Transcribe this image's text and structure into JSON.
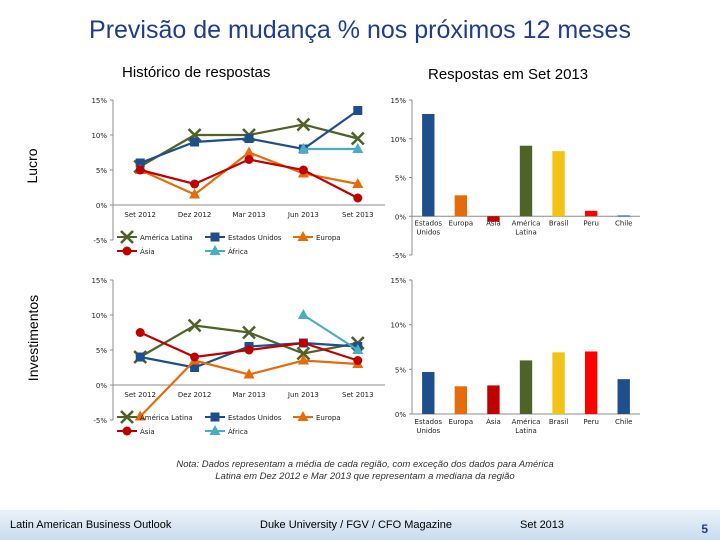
{
  "slide": {
    "title": "Previsão de mudança % nos próximos 12 meses",
    "left_header": "Histórico de respostas",
    "right_header": "Respostas em Set 2013",
    "row_top_label": "Lucro",
    "row_bottom_label": "Investimentos",
    "note": "Nota: Dados representam a média de cada região, com exceção dos dados para América Latina em Dez 2012 e Mar 2013 que representam a mediana da região",
    "footer_left": "Latin American Business Outlook",
    "footer_mid": "Duke University / FGV / CFO Magazine",
    "footer_right": "Set 2013",
    "page_number": "5"
  },
  "colors": {
    "america_latina": "#4f6228",
    "estados_unidos": "#1f4e8c",
    "europa": "#e46c0a",
    "asia": "#c00000",
    "africa": "#4bacc6",
    "brasil": "#f2c314",
    "peru": "#ff0000",
    "chile": "#1f4e8c"
  },
  "chart_data": [
    {
      "id": "lucro-historico",
      "type": "line",
      "title": "",
      "categories": [
        "Set 2012",
        "Dez 2012",
        "Mar 2013",
        "Jun 2013",
        "Set 2013"
      ],
      "ylim": [
        -5,
        15
      ],
      "yticks": [
        "-5%",
        "0%",
        "5%",
        "10%",
        "15%"
      ],
      "ytick_values": [
        -5,
        0,
        5,
        10,
        15
      ],
      "series": [
        {
          "name": "América Latina",
          "key": "america_latina",
          "marker": "x",
          "values": [
            5.5,
            10,
            10,
            11.5,
            9.5
          ]
        },
        {
          "name": "Estados Unidos",
          "key": "estados_unidos",
          "marker": "square",
          "values": [
            6,
            9,
            9.5,
            8,
            13.5
          ]
        },
        {
          "name": "Europa",
          "key": "europa",
          "marker": "triangle",
          "values": [
            5,
            1.5,
            7.5,
            4.5,
            3
          ]
        },
        {
          "name": "Ásia",
          "key": "asia",
          "marker": "circle",
          "values": [
            5,
            3,
            6.5,
            5,
            1
          ]
        },
        {
          "name": "África",
          "key": "africa",
          "marker": "triangle",
          "values": [
            null,
            null,
            null,
            8,
            8
          ]
        }
      ]
    },
    {
      "id": "lucro-set2013",
      "type": "bar",
      "categories": [
        "Estados Unidos",
        "Europa",
        "Ásia",
        "América Latina",
        "Brasil",
        "Peru",
        "Chile"
      ],
      "keys": [
        "estados_unidos",
        "europa",
        "asia",
        "america_latina",
        "brasil",
        "peru",
        "chile"
      ],
      "values": [
        13.2,
        2.7,
        -0.7,
        9.1,
        8.4,
        0.7,
        0.1
      ],
      "ylim": [
        -5,
        15
      ],
      "yticks": [
        "-5%",
        "0%",
        "5%",
        "10%",
        "15%"
      ],
      "ytick_values": [
        -5,
        0,
        5,
        10,
        15
      ]
    },
    {
      "id": "investimentos-historico",
      "type": "line",
      "categories": [
        "Set 2012",
        "Dez 2012",
        "Mar 2013",
        "Jun 2013",
        "Set 2013"
      ],
      "ylim": [
        -5,
        15
      ],
      "yticks": [
        "-5%",
        "0%",
        "5%",
        "10%",
        "15%"
      ],
      "ytick_values": [
        -5,
        0,
        5,
        10,
        15
      ],
      "series": [
        {
          "name": "América Latina",
          "key": "america_latina",
          "marker": "x",
          "values": [
            4,
            8.5,
            7.5,
            4.5,
            6
          ]
        },
        {
          "name": "Estados Unidos",
          "key": "estados_unidos",
          "marker": "square",
          "values": [
            4,
            2.5,
            5.5,
            6,
            5.5
          ]
        },
        {
          "name": "Europa",
          "key": "europa",
          "marker": "triangle",
          "values": [
            -4.5,
            3.5,
            1.5,
            3.5,
            3
          ]
        },
        {
          "name": "Ásia",
          "key": "asia",
          "marker": "circle",
          "values": [
            7.5,
            4,
            5,
            6,
            3.5
          ]
        },
        {
          "name": "África",
          "key": "africa",
          "marker": "triangle",
          "values": [
            null,
            null,
            null,
            10,
            5
          ]
        }
      ]
    },
    {
      "id": "investimentos-set2013",
      "type": "bar",
      "categories": [
        "Estados Unidos",
        "Europa",
        "Ásia",
        "América Latina",
        "Brasil",
        "Peru",
        "Chile"
      ],
      "keys": [
        "estados_unidos",
        "europa",
        "asia",
        "america_latina",
        "brasil",
        "peru",
        "chile"
      ],
      "values": [
        4.7,
        3.1,
        3.2,
        6.0,
        6.9,
        7.0,
        3.9
      ],
      "ylim": [
        0,
        15
      ],
      "yticks": [
        "0%",
        "5%",
        "10%",
        "15%"
      ],
      "ytick_values": [
        0,
        5,
        10,
        15
      ]
    }
  ]
}
